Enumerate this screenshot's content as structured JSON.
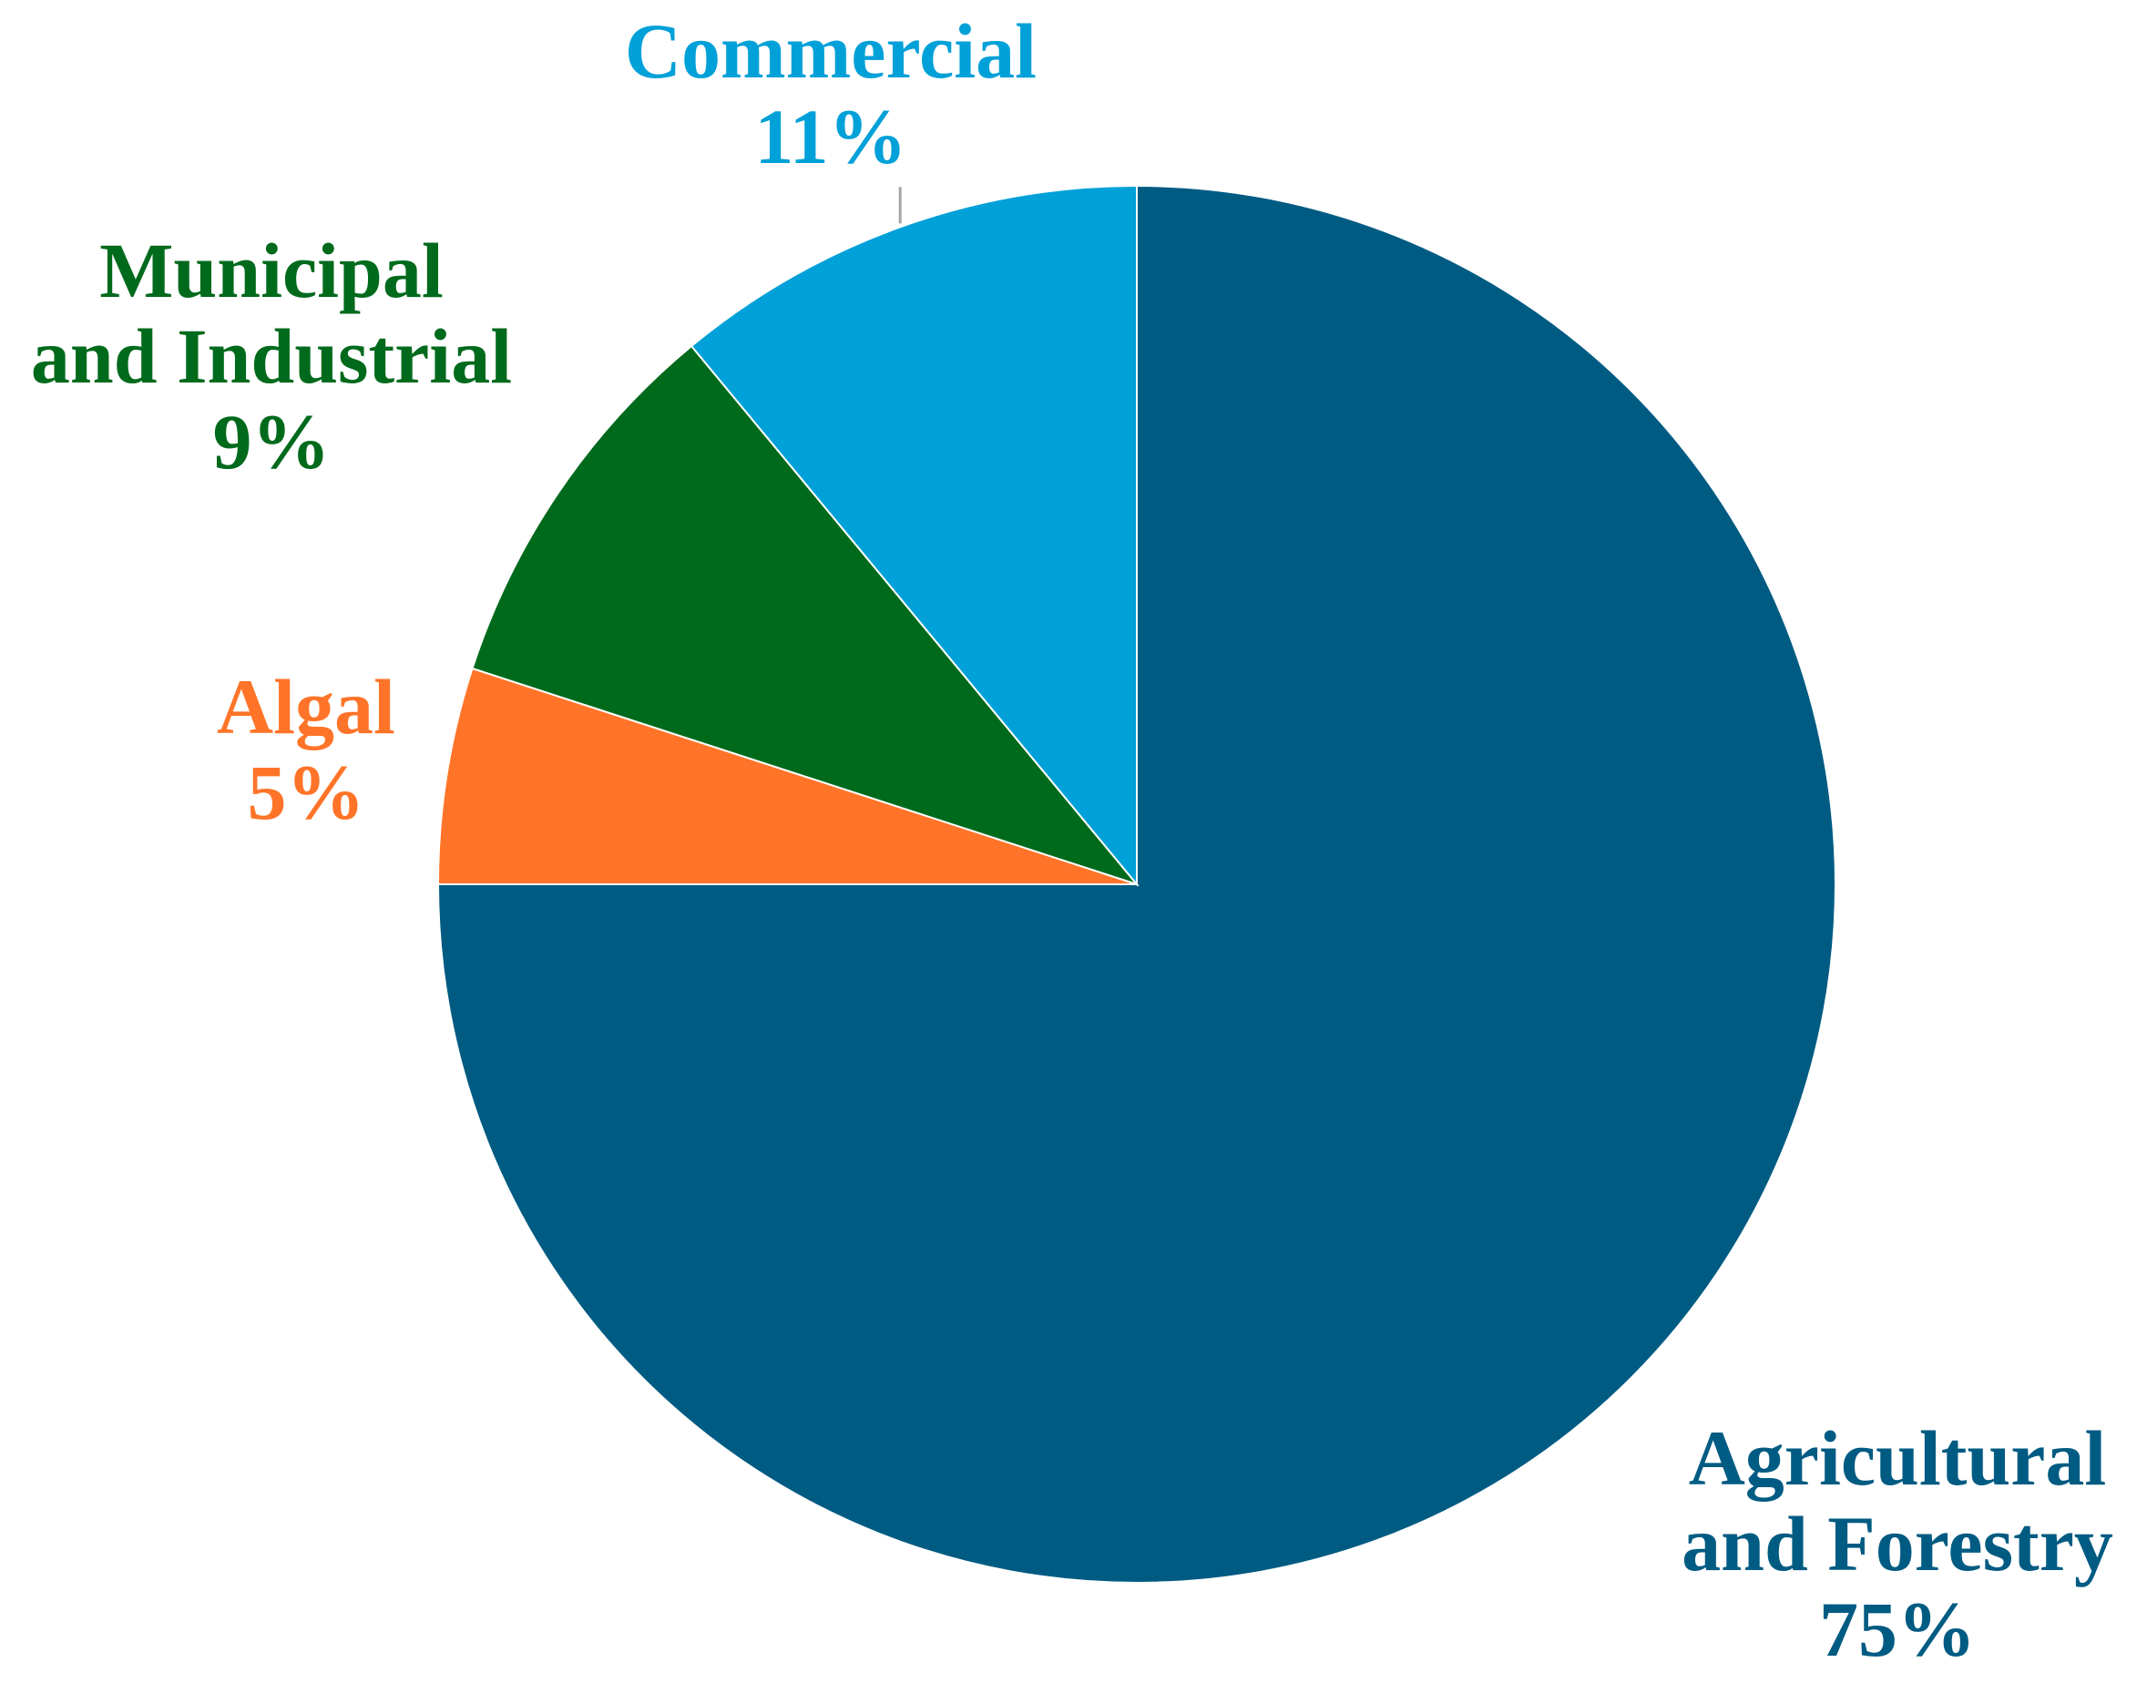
{
  "chart_data": {
    "type": "pie",
    "start_angle_deg": 0,
    "direction": "clockwise",
    "slices": [
      {
        "category": "Agricultural and Forestry",
        "label_lines": [
          "Agricultural",
          "and Forestry"
        ],
        "pct_label": "75%",
        "value": 75,
        "color": "#005B82"
      },
      {
        "category": "Algal",
        "label_lines": [
          "Algal"
        ],
        "pct_label": "5%",
        "value": 5,
        "color": "#FF7428"
      },
      {
        "category": "Municipal and Industrial",
        "label_lines": [
          "Municipal",
          "and Industrial"
        ],
        "pct_label": "9%",
        "value": 9,
        "color": "#006A1C"
      },
      {
        "category": "Commercial",
        "label_lines": [
          "Commercial"
        ],
        "pct_label": "11%",
        "value": 11,
        "color": "#00A0D8"
      }
    ],
    "legend": "none",
    "label_placement": "outside",
    "leader_lines": [
      "Commercial"
    ]
  }
}
